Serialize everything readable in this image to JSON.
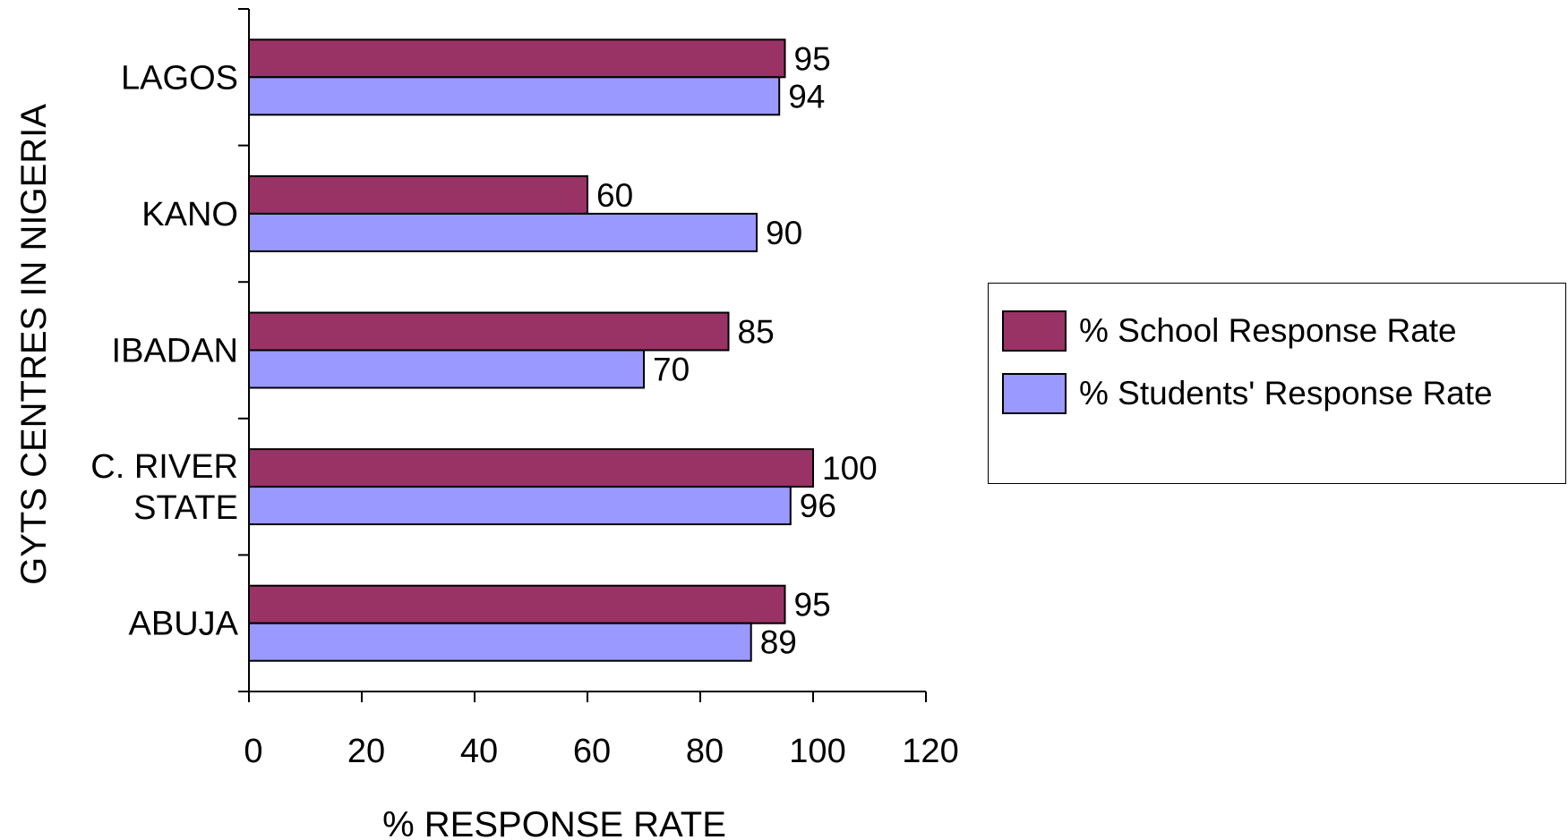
{
  "chart_data": {
    "type": "bar",
    "orientation": "horizontal",
    "categories": [
      "LAGOS",
      "KANO",
      "IBADAN",
      "C. RIVER STATE",
      "ABUJA"
    ],
    "category_lines": [
      [
        "LAGOS"
      ],
      [
        "KANO"
      ],
      [
        "IBADAN"
      ],
      [
        "C. RIVER",
        "STATE"
      ],
      [
        "ABUJA"
      ]
    ],
    "series": [
      {
        "name": "% School Response Rate",
        "color": "#993366",
        "values": [
          95,
          60,
          85,
          100,
          95
        ]
      },
      {
        "name": "% Students' Response Rate",
        "color": "#9999FF",
        "values": [
          94,
          90,
          70,
          96,
          89
        ]
      }
    ],
    "xlabel": "% RESPONSE RATE",
    "ylabel": "GYTS CENTRES IN NIGERIA",
    "xlim": [
      0,
      120
    ],
    "xticks": [
      0,
      20,
      40,
      60,
      80,
      100,
      120
    ],
    "grid": false,
    "data_labels": true,
    "legend_position": "right"
  }
}
